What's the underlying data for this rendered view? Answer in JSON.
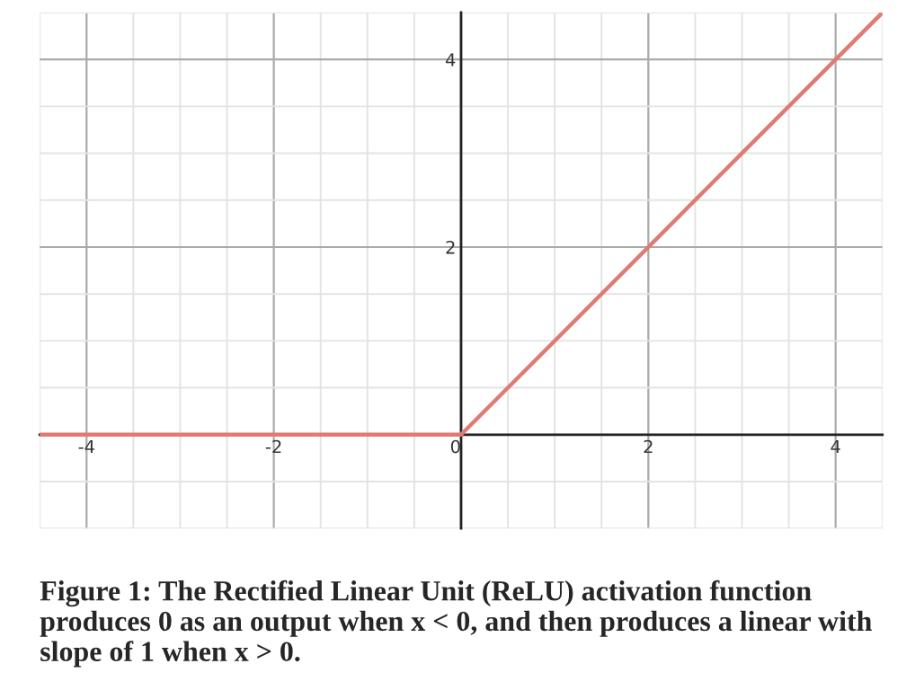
{
  "chart_data": {
    "type": "line",
    "x": [
      -4.5,
      0,
      4.5
    ],
    "series": [
      {
        "color": "#e07b73",
        "values": [
          0,
          0,
          4.5
        ]
      }
    ],
    "xlim": [
      -4.5,
      4.5
    ],
    "ylim": [
      -1,
      4.5
    ],
    "xticks": [
      {
        "value": -4,
        "label": "-4"
      },
      {
        "value": -2,
        "label": "-2"
      },
      0,
      2,
      4
    ],
    "yticks": [
      2,
      4
    ],
    "grid": true,
    "marker": "none",
    "line_style": "solid",
    "annotations": [
      "Figure 1: The Rectified Linear Unit (ReLU) activation function produces 0 as an output when x < 0, and then produces a linear with slope of 1 when x > 0."
    ]
  }
}
